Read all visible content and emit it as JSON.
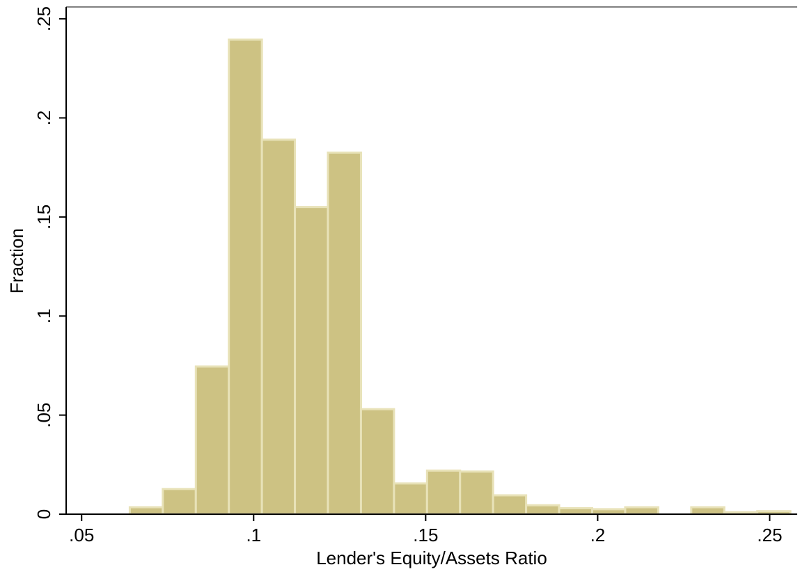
{
  "chart_data": {
    "type": "histogram",
    "x_label": "Lender's Equity/Assets Ratio",
    "y_label": "Fraction",
    "bins": [
      0.064,
      0.0736,
      0.0832,
      0.0928,
      0.1024,
      0.112,
      0.1216,
      0.1312,
      0.1408,
      0.1504,
      0.16,
      0.1696,
      0.1792,
      0.1888,
      0.1984,
      0.208,
      0.2176,
      0.2272,
      0.2368,
      0.2464,
      0.256
    ],
    "values": [
      0.0035,
      0.0127,
      0.0745,
      0.2395,
      0.189,
      0.155,
      0.1825,
      0.053,
      0.0155,
      0.022,
      0.0215,
      0.0095,
      0.0045,
      0.003,
      0.0025,
      0.0035,
      0,
      0.0035,
      0.001,
      0.0015
    ],
    "color": "#cdc283",
    "edge_color": "#e8e2b8",
    "xlim": [
      0.0455,
      0.258
    ],
    "ylim": [
      0,
      0.256
    ],
    "xticks": [
      {
        "value": 0.05,
        "label": ".05"
      },
      {
        "value": 0.1,
        "label": ".1"
      },
      {
        "value": 0.15,
        "label": ".15"
      },
      {
        "value": 0.2,
        "label": ".2"
      },
      {
        "value": 0.25,
        "label": ".25"
      }
    ],
    "yticks": [
      0,
      {
        "value": 0.05,
        "label": ".05"
      },
      {
        "value": 0.1,
        "label": ".1"
      },
      {
        "value": 0.15,
        "label": ".15"
      },
      {
        "value": 0.2,
        "label": ".2"
      },
      {
        "value": 0.25,
        "label": ".25"
      }
    ]
  }
}
